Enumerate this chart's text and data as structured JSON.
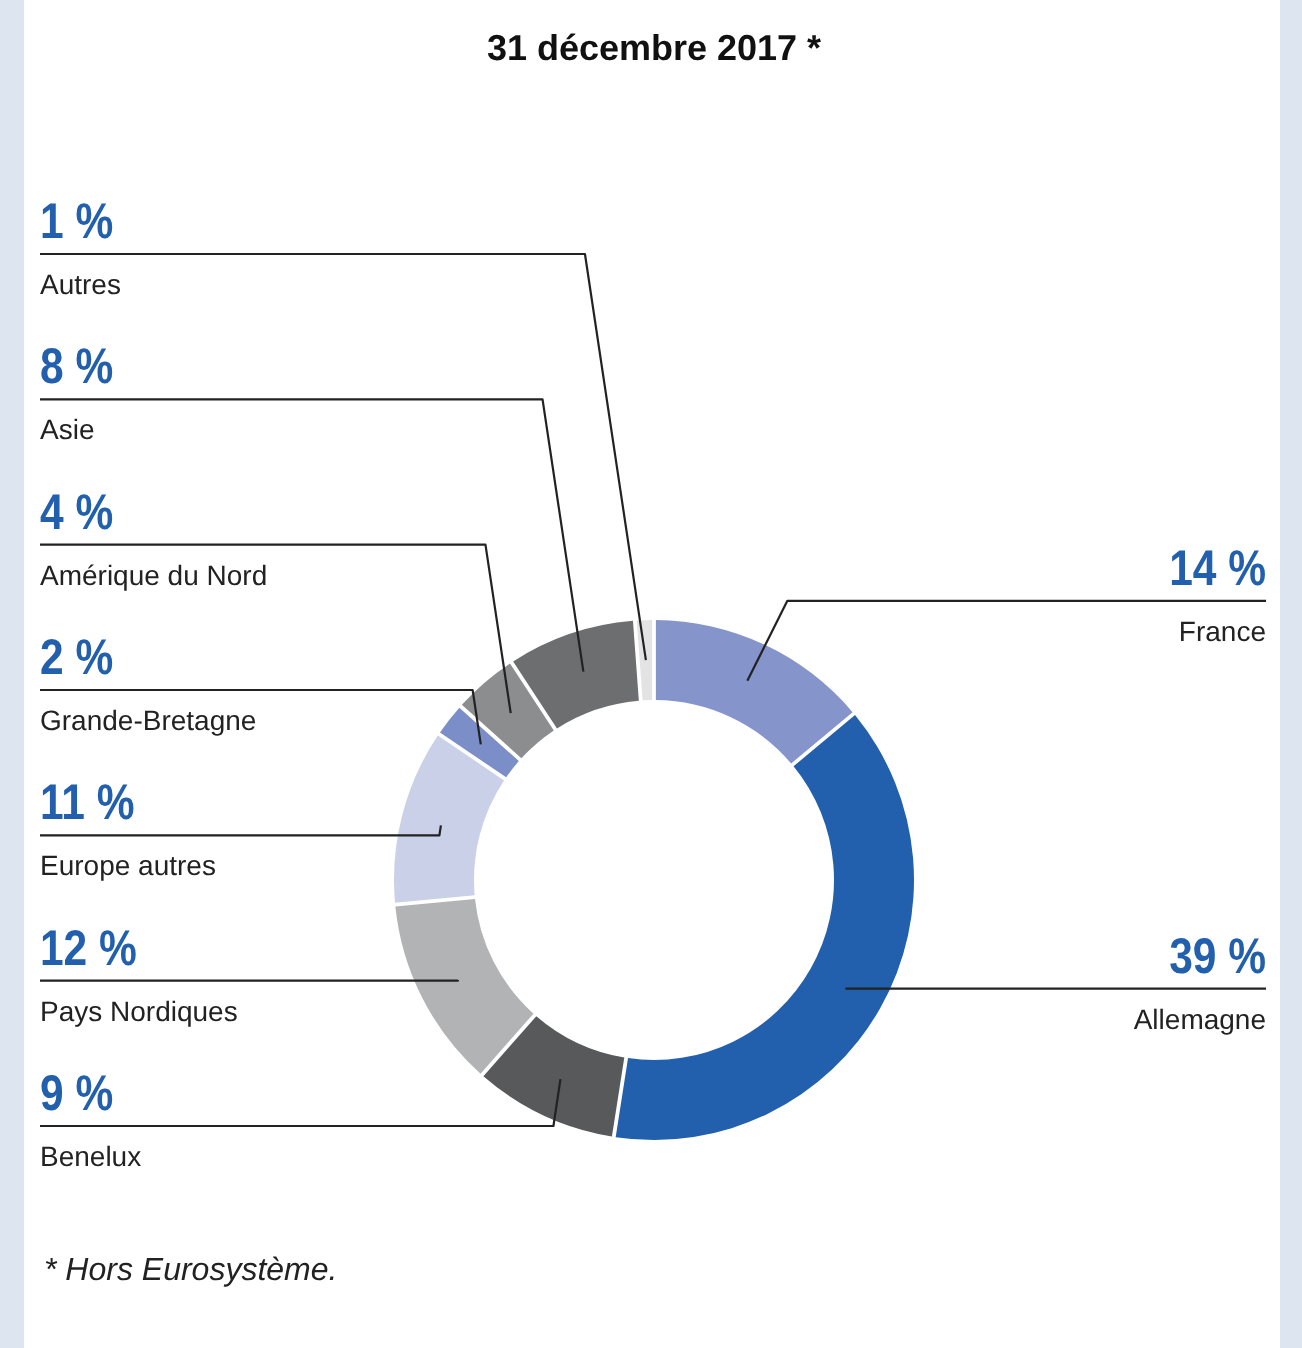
{
  "chart_data": {
    "type": "donut",
    "title": "31 décembre 2017 *",
    "categories": [
      "France",
      "Allemagne",
      "Benelux",
      "Pays Nordiques",
      "Europe autres",
      "Grande-Bretagne",
      "Amérique du Nord",
      "Asie",
      "Autres"
    ],
    "values": [
      14,
      39,
      9,
      12,
      11,
      2,
      4,
      8,
      1
    ],
    "value_labels": [
      "14 %",
      "39 %",
      "9 %",
      "12 %",
      "11 %",
      "2 %",
      "4 %",
      "8 %",
      "1 %"
    ],
    "colors": [
      "#8595cc",
      "#2260ad",
      "#58595b",
      "#b2b3b5",
      "#c9d0e8",
      "#7b8ec8",
      "#8c8d8f",
      "#6d6e70",
      "#e3e3e3"
    ],
    "annotations": [
      "* Hors Eurosystème."
    ]
  }
}
